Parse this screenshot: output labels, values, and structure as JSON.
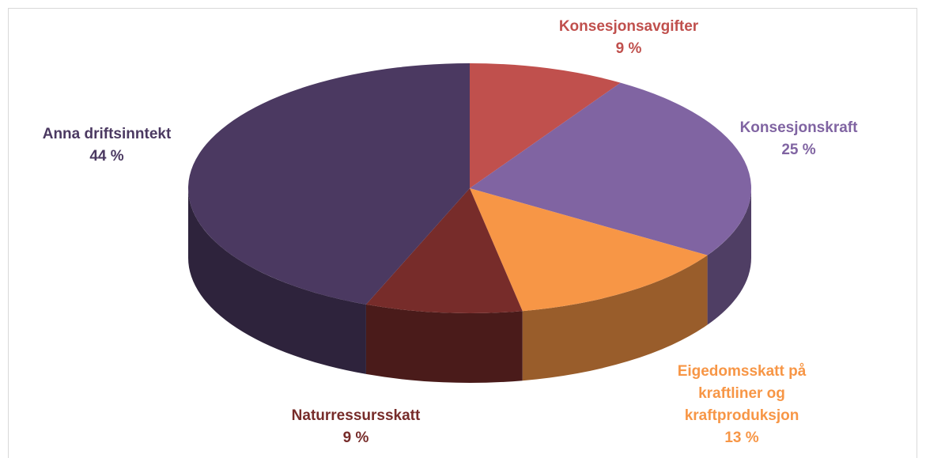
{
  "chart_data": {
    "type": "pie",
    "categories": [
      "Konsesjonsavgifter",
      "Konsesjonskraft",
      "Eigedomsskatt på kraftliner og kraftproduksjon",
      "Naturressursskatt",
      "Anna driftsinntekt"
    ],
    "values": [
      9,
      25,
      13,
      9,
      44
    ],
    "value_labels": [
      "9 %",
      "25 %",
      "13 %",
      "9 %",
      "44 %"
    ],
    "colors": [
      "#c0504d",
      "#8064a2",
      "#f79646",
      "#772c2a",
      "#4b3961"
    ]
  }
}
